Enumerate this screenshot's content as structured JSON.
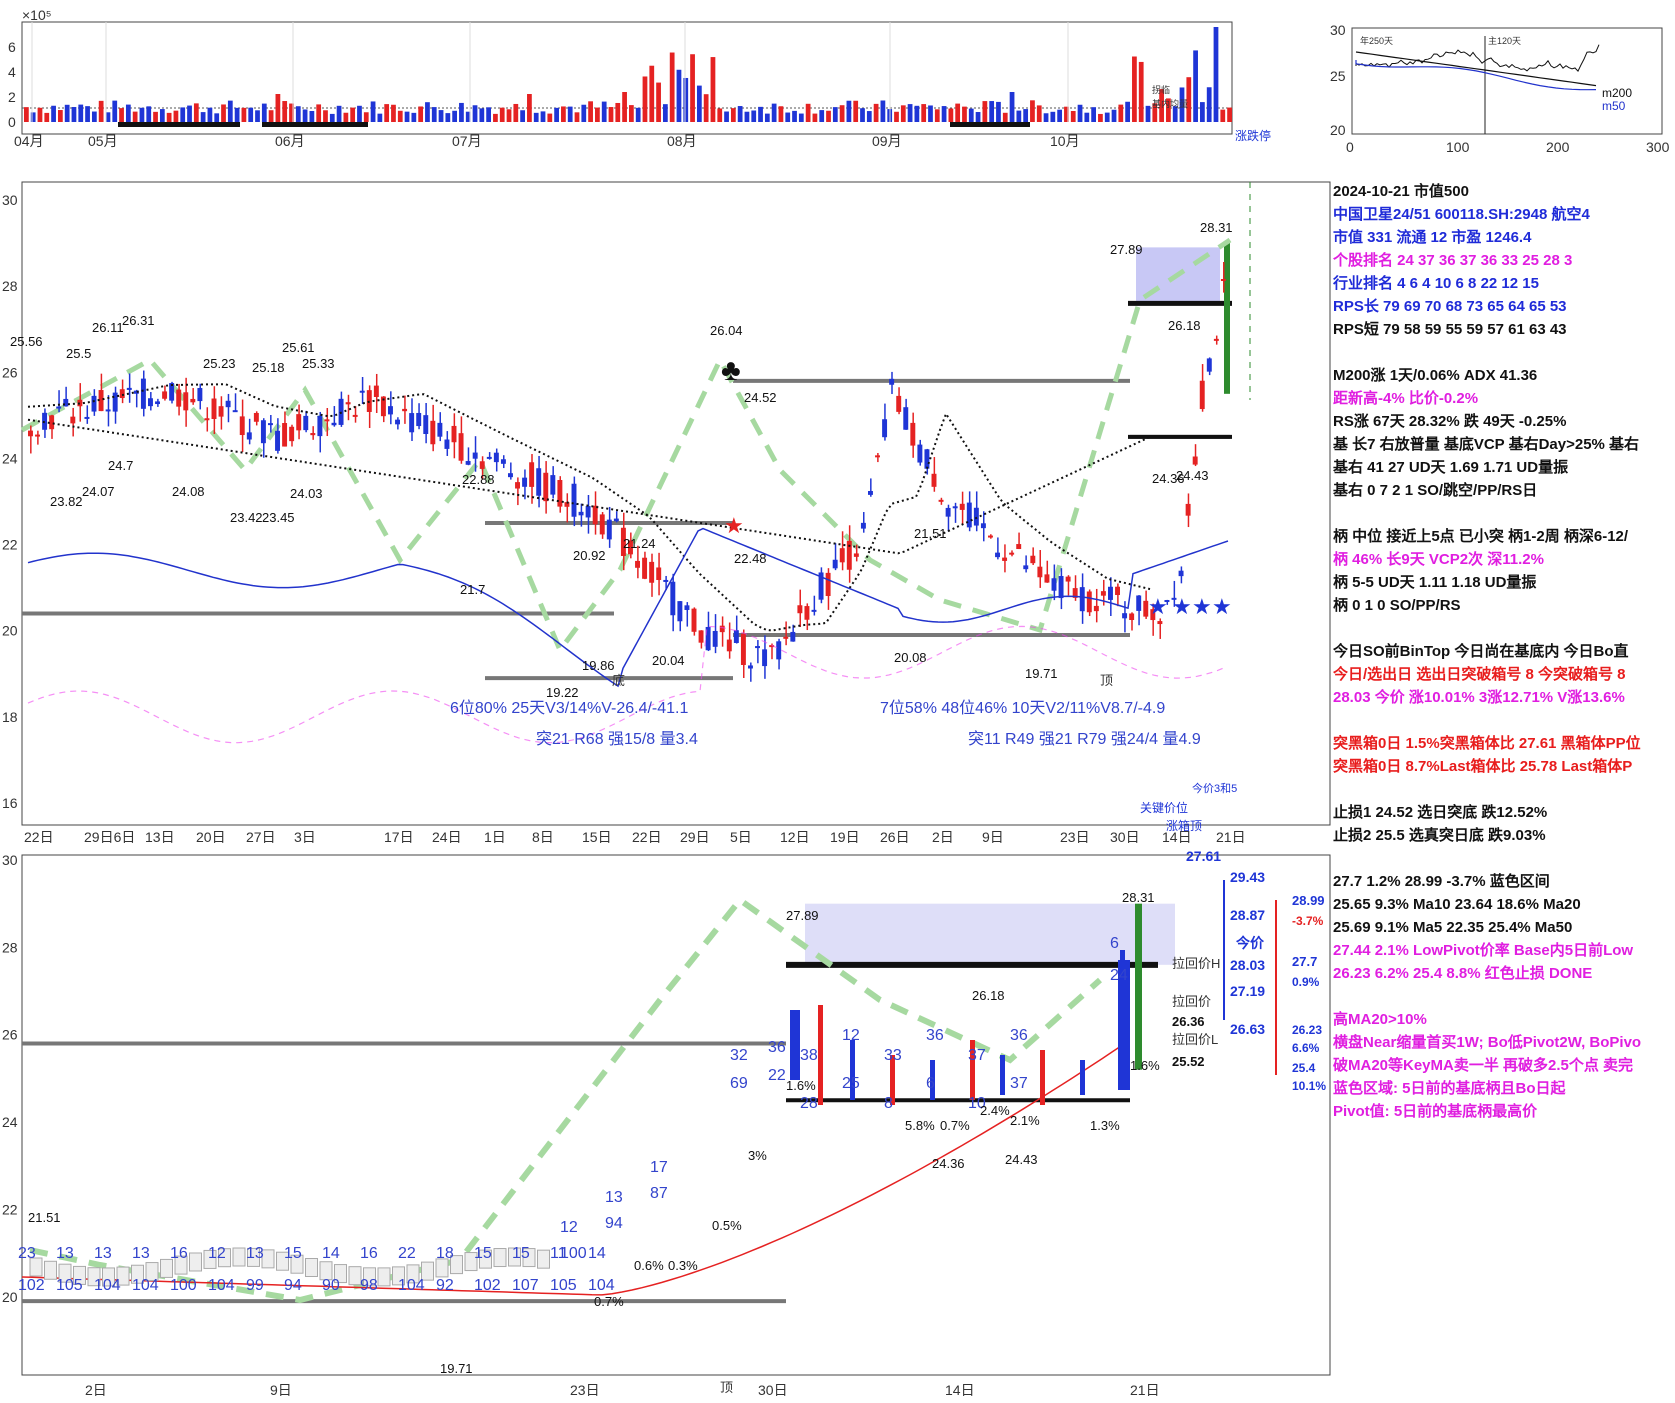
{
  "colors": {
    "up": "#e52222",
    "down": "#1f35d6",
    "ma_dotted": "#111111",
    "rs_line": "#2233cc",
    "pivot_box": "#c8c8f5",
    "green_bar": "#2e8b2e",
    "dashed_green": "#a6d9a0",
    "magenta": "#ee44ee"
  },
  "volume_panel": {
    "y_unit": "×10⁵",
    "y_ticks": [
      "6",
      "4",
      "2",
      "0"
    ],
    "month_labels": [
      "04月",
      "05月",
      "06月",
      "07月",
      "08月",
      "09月",
      "10月"
    ],
    "legend_small": [
      "拐临",
      "基内均量"
    ],
    "limit_label": "涨跌停"
  },
  "mini_chart": {
    "y_ticks": [
      "30",
      "25",
      "20"
    ],
    "x_ticks": [
      "0",
      "100",
      "200",
      "300"
    ],
    "top_labels": [
      "年250天",
      "主120天"
    ],
    "legend": [
      "m200",
      "m50"
    ]
  },
  "main_chart": {
    "y_ticks": [
      "30",
      "28",
      "26",
      "24",
      "22",
      "20",
      "18",
      "16"
    ],
    "x_ticks": [
      "22日",
      "29日6日",
      "13日",
      "20日",
      "27日",
      "3日",
      "17日",
      "24日",
      "1日",
      "8日",
      "15日",
      "22日",
      "29日",
      "5日",
      "12日",
      "19日",
      "26日",
      "2日",
      "9日",
      "23日",
      "30日",
      "14日",
      "21日"
    ],
    "price_labels": [
      "25.56",
      "25.5",
      "26.11",
      "26.31",
      "25.23",
      "25.18",
      "25.61",
      "25.33",
      "24.7",
      "23.82",
      "24.07",
      "24.08",
      "23.42",
      "23.45",
      "24.03",
      "22.88",
      "21.7",
      "20.92",
      "21.24",
      "19.22",
      "19.86",
      "20.04",
      "26.04",
      "24.52",
      "22.48",
      "21.51",
      "20.08",
      "19.71",
      "27.89",
      "28.31",
      "26.18",
      "24.36",
      "24.43"
    ],
    "annotations": [
      "6位80%  25天V3/14%V-26.4/-41.1",
      "突21 R68 强15/8 量3.4",
      "7位58%  48位46% 10天V2/11%V8.7/-4.9",
      "突11 R49 强21 R79 强24/4 量4.9",
      "底",
      "顶",
      "今价3和5",
      "关键价位",
      "涨箱顶"
    ]
  },
  "zoom_chart": {
    "y_ticks": [
      "30",
      "28",
      "26",
      "24",
      "22",
      "20"
    ],
    "x_ticks": [
      "2日",
      "9日",
      "23日",
      "30日",
      "14日",
      "21日"
    ],
    "price_labels": [
      "27.89",
      "28.31",
      "26.18",
      "24.36",
      "24.43",
      "21.51",
      "19.71"
    ],
    "bar_numbers": [
      "23",
      "102",
      "13",
      "105",
      "13",
      "104",
      "13",
      "104",
      "16",
      "100",
      "12",
      "104",
      "13",
      "99",
      "15",
      "94",
      "14",
      "90",
      "16",
      "98",
      "22",
      "104",
      "18",
      "92",
      "15",
      "102",
      "15",
      "107",
      "11",
      "105",
      "14",
      "104",
      "12",
      "100",
      "13",
      "94",
      "17",
      "87",
      "32",
      "69",
      "36",
      "22",
      "38",
      "28",
      "12",
      "25",
      "33",
      "8",
      "36",
      "6",
      "37",
      "10",
      "36",
      "37",
      "6",
      "24"
    ],
    "pct_labels": [
      "0.7%",
      "0.6%",
      "0.3%",
      "0.5%",
      "3%",
      "1.6%",
      "5.8%",
      "0.7%",
      "2.4%",
      "2.1%",
      "1.3%",
      "1.6%"
    ],
    "right_labels": [
      "27.61",
      "29.43",
      "28.99",
      "-3.7%",
      "28.87",
      "今价",
      "28.03",
      "27.7",
      "0.9%",
      "27.19",
      "26.36",
      "26.23",
      "6.6%",
      "26.63",
      "25.52",
      "25.4",
      "10.1%"
    ],
    "pull_labels": [
      "拉回价H",
      "拉回价",
      "拉回价L"
    ],
    "misc": [
      "顶"
    ]
  },
  "info_panel": [
    {
      "text": "2024-10-21 市值500",
      "color": "black"
    },
    {
      "text": "中国卫星24/51 600118.SH:2948 航空4",
      "color": "blue"
    },
    {
      "text": "市值 331  流通 12 市盈 1246.4",
      "color": "blue"
    },
    {
      "text": "个股排名 24   37   36   37   36   33   25   28   3",
      "color": "mag"
    },
    {
      "text": "行业排名 4    6    4   10    6    8   22   12   15",
      "color": "blue"
    },
    {
      "text": "RPS长 79   69   70   68   73   65   64   65   53",
      "color": "blue"
    },
    {
      "text": "RPS短 79   58   59   55   59   57   61   63   43",
      "color": "black"
    },
    {
      "text": "",
      "color": "black"
    },
    {
      "text": "M200涨 1天/0.06%  ADX 41.36",
      "color": "black"
    },
    {
      "text": "距新高-4%  比价-0.2%",
      "color": "mag"
    },
    {
      "text": "RS涨 67天 28.32% 跌 49天 -0.25%",
      "color": "black"
    },
    {
      "text": "基 长7 右放普量 基底VCP 基右Day>25% 基右",
      "color": "black"
    },
    {
      "text": "基右 41 27 UD天 1.69 1.71 UD量振",
      "color": "black"
    },
    {
      "text": "基右 0 7 2 1 SO/跳空/PP/RS日",
      "color": "black"
    },
    {
      "text": "",
      "color": "black"
    },
    {
      "text": "柄 中位 接近上5点 已小突 柄1-2周 柄深6-12/",
      "color": "black"
    },
    {
      "text": "柄 46% 长9天  VCP2次 深11.2%",
      "color": "mag"
    },
    {
      "text": "柄 5-5 UD天 1.11 1.18 UD量振",
      "color": "black"
    },
    {
      "text": "柄 0 1 0 SO/PP/RS",
      "color": "black"
    },
    {
      "text": "",
      "color": "black"
    },
    {
      "text": "今日SO前BinTop 今日尚在基底内 今日Bo直",
      "color": "black"
    },
    {
      "text": "今日/选出日  选出日突破箱号 8 今突破箱号 8",
      "color": "red"
    },
    {
      "text": "28.03 今价  涨10.01% 3涨12.71% V涨13.6%",
      "color": "mag"
    },
    {
      "text": "",
      "color": "black"
    },
    {
      "text": "突黑箱0日 1.5%突黑箱体比 27.61 黑箱体PP位",
      "color": "red"
    },
    {
      "text": "突黑箱0日 8.7%Last箱体比 25.78 Last箱体P",
      "color": "red"
    },
    {
      "text": "",
      "color": "black"
    },
    {
      "text": "止损1 24.52 选日突底 跌12.52%",
      "color": "black"
    },
    {
      "text": "止损2 25.5 选真突日底 跌9.03%",
      "color": "black"
    },
    {
      "text": "",
      "color": "black"
    },
    {
      "text": "27.7 1.2% 28.99 -3.7% 蓝色区间",
      "color": "black"
    },
    {
      "text": "  25.65 9.3% Ma10    23.64 18.6% Ma20",
      "color": "black"
    },
    {
      "text": "  25.69 9.1% Ma5    22.35 25.4% Ma50",
      "color": "black"
    },
    {
      "text": "27.44 2.1% LowPivot价率  Base内5日前Low",
      "color": "mag"
    },
    {
      "text": "26.23 6.2% 25.4 8.8% 红色止损 DONE",
      "color": "mag"
    },
    {
      "text": "",
      "color": "black"
    },
    {
      "text": "高MA20>10%",
      "color": "mag"
    },
    {
      "text": "横盘Near缩量首买1W; Bo低Pivot2W, BoPivo",
      "color": "mag"
    },
    {
      "text": "破MA20等KeyMA卖一半 再破多2.5个点 卖完",
      "color": "mag"
    },
    {
      "text": "蓝色区域:  5日前的基底柄且Bo日起",
      "color": "mag"
    },
    {
      "text": "Pivot值:  5日前的基底柄最高价",
      "color": "mag"
    }
  ]
}
